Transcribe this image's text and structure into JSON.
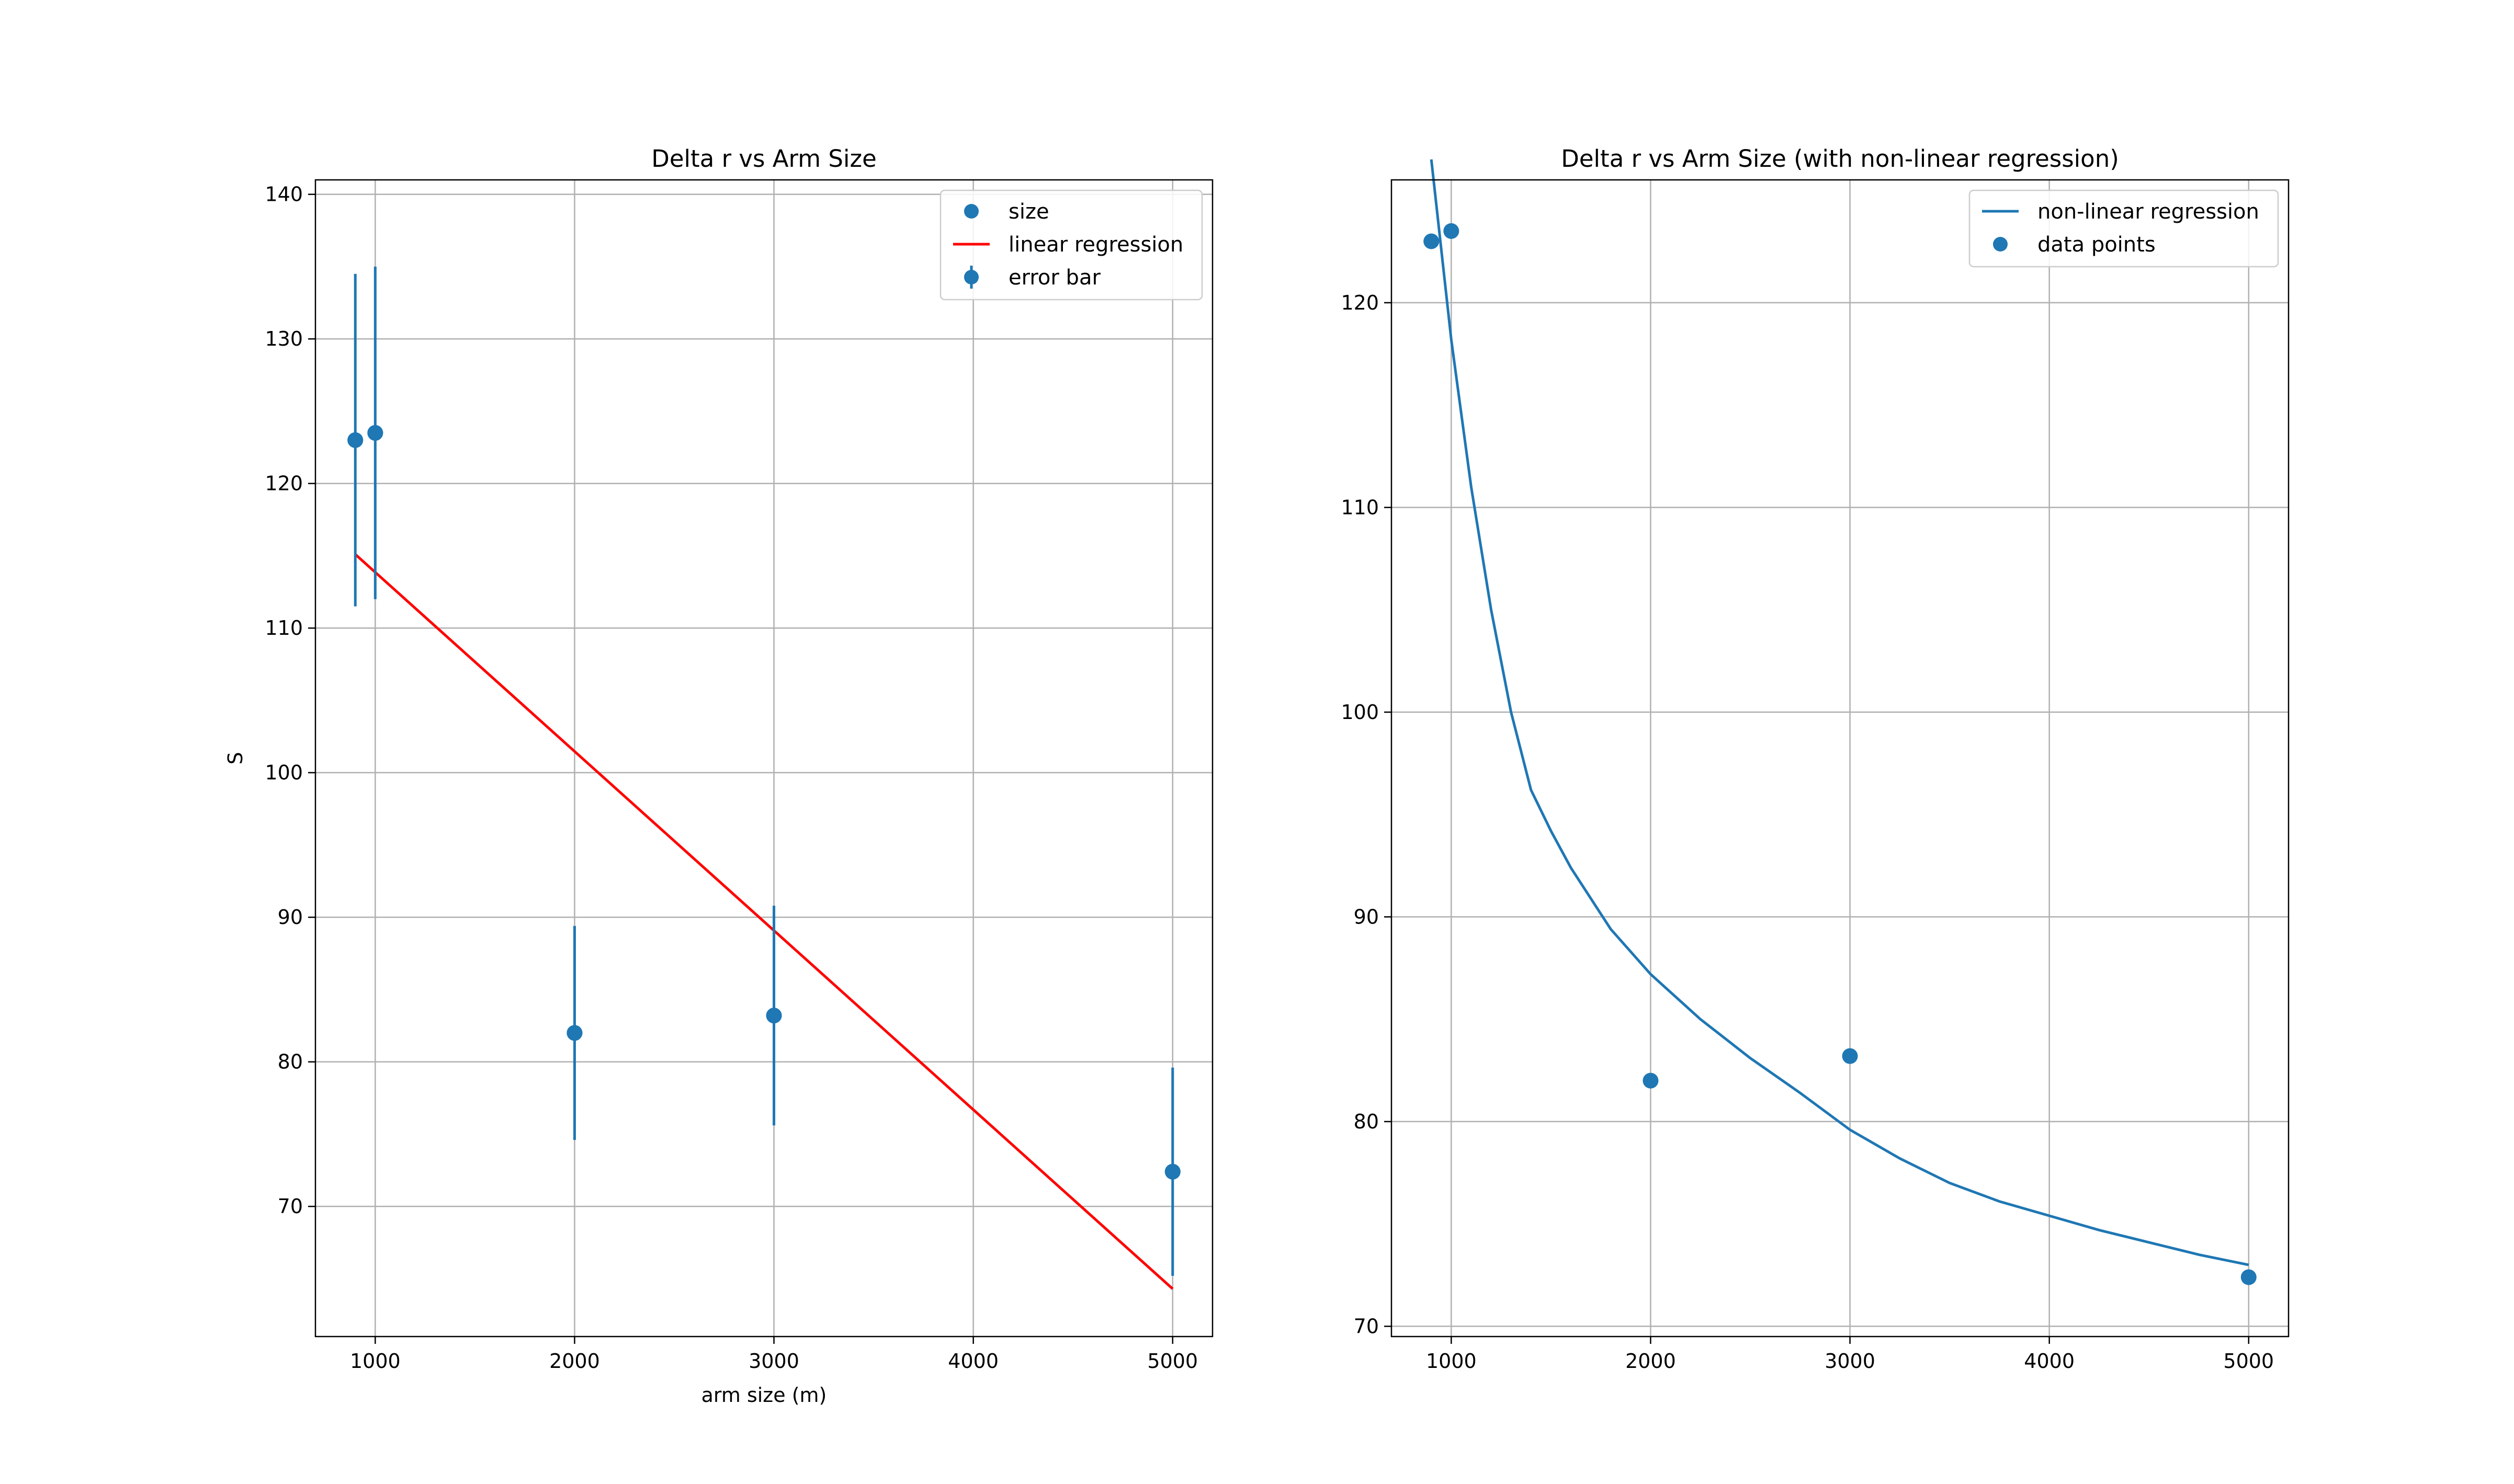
{
  "chart_data": [
    {
      "type": "scatter",
      "title": "Delta r vs Arm Size",
      "xlabel": "arm size (m)",
      "ylabel": "S",
      "xlim": [
        700,
        5200
      ],
      "ylim": [
        61,
        141
      ],
      "xticks": [
        1000,
        2000,
        3000,
        4000,
        5000
      ],
      "yticks": [
        70,
        80,
        90,
        100,
        110,
        120,
        130,
        140
      ],
      "grid": true,
      "legend_position": "top-right",
      "colors": {
        "points": "#1f77b4",
        "regression": "#ff0000"
      },
      "series": [
        {
          "name": "size",
          "kind": "scatter",
          "x": [
            900,
            1000,
            2000,
            3000,
            5000
          ],
          "y": [
            123.0,
            123.5,
            82.0,
            83.2,
            72.4
          ]
        },
        {
          "name": "linear regression",
          "kind": "line",
          "x": [
            900,
            5000
          ],
          "y": [
            115.1,
            64.3
          ]
        },
        {
          "name": "error bar",
          "kind": "errorbar",
          "x": [
            900,
            1000,
            2000,
            3000,
            5000
          ],
          "y": [
            123.0,
            123.5,
            82.0,
            83.2,
            72.4
          ],
          "yerr": [
            11.5,
            11.5,
            7.4,
            7.6,
            7.2
          ]
        }
      ]
    },
    {
      "type": "line",
      "title": "Delta r vs Arm Size (with non-linear regression)",
      "xlabel": "",
      "ylabel": "",
      "xlim": [
        700,
        5200
      ],
      "ylim": [
        69.5,
        126
      ],
      "xticks": [
        1000,
        2000,
        3000,
        4000,
        5000
      ],
      "yticks": [
        70,
        80,
        90,
        100,
        110,
        120
      ],
      "grid": true,
      "legend_position": "top-right",
      "colors": {
        "points": "#1f77b4",
        "regression": "#1f77b4"
      },
      "series": [
        {
          "name": "non-linear regression",
          "kind": "line",
          "x": [
            900,
            1000,
            1100,
            1200,
            1300,
            1400,
            1500,
            1600,
            1800,
            2000,
            2250,
            2500,
            2750,
            3000,
            3250,
            3500,
            3750,
            4000,
            4250,
            4500,
            4750,
            5000
          ],
          "y": [
            127.0,
            118.2,
            111.0,
            105.0,
            100.0,
            96.2,
            94.2,
            92.4,
            89.4,
            87.2,
            85.0,
            83.1,
            81.4,
            79.6,
            78.2,
            77.0,
            76.1,
            75.4,
            74.7,
            74.1,
            73.5,
            73.0
          ]
        },
        {
          "name": "data points",
          "kind": "scatter",
          "x": [
            900,
            1000,
            2000,
            3000,
            5000
          ],
          "y": [
            123.0,
            123.5,
            82.0,
            83.2,
            72.4
          ]
        }
      ]
    }
  ]
}
